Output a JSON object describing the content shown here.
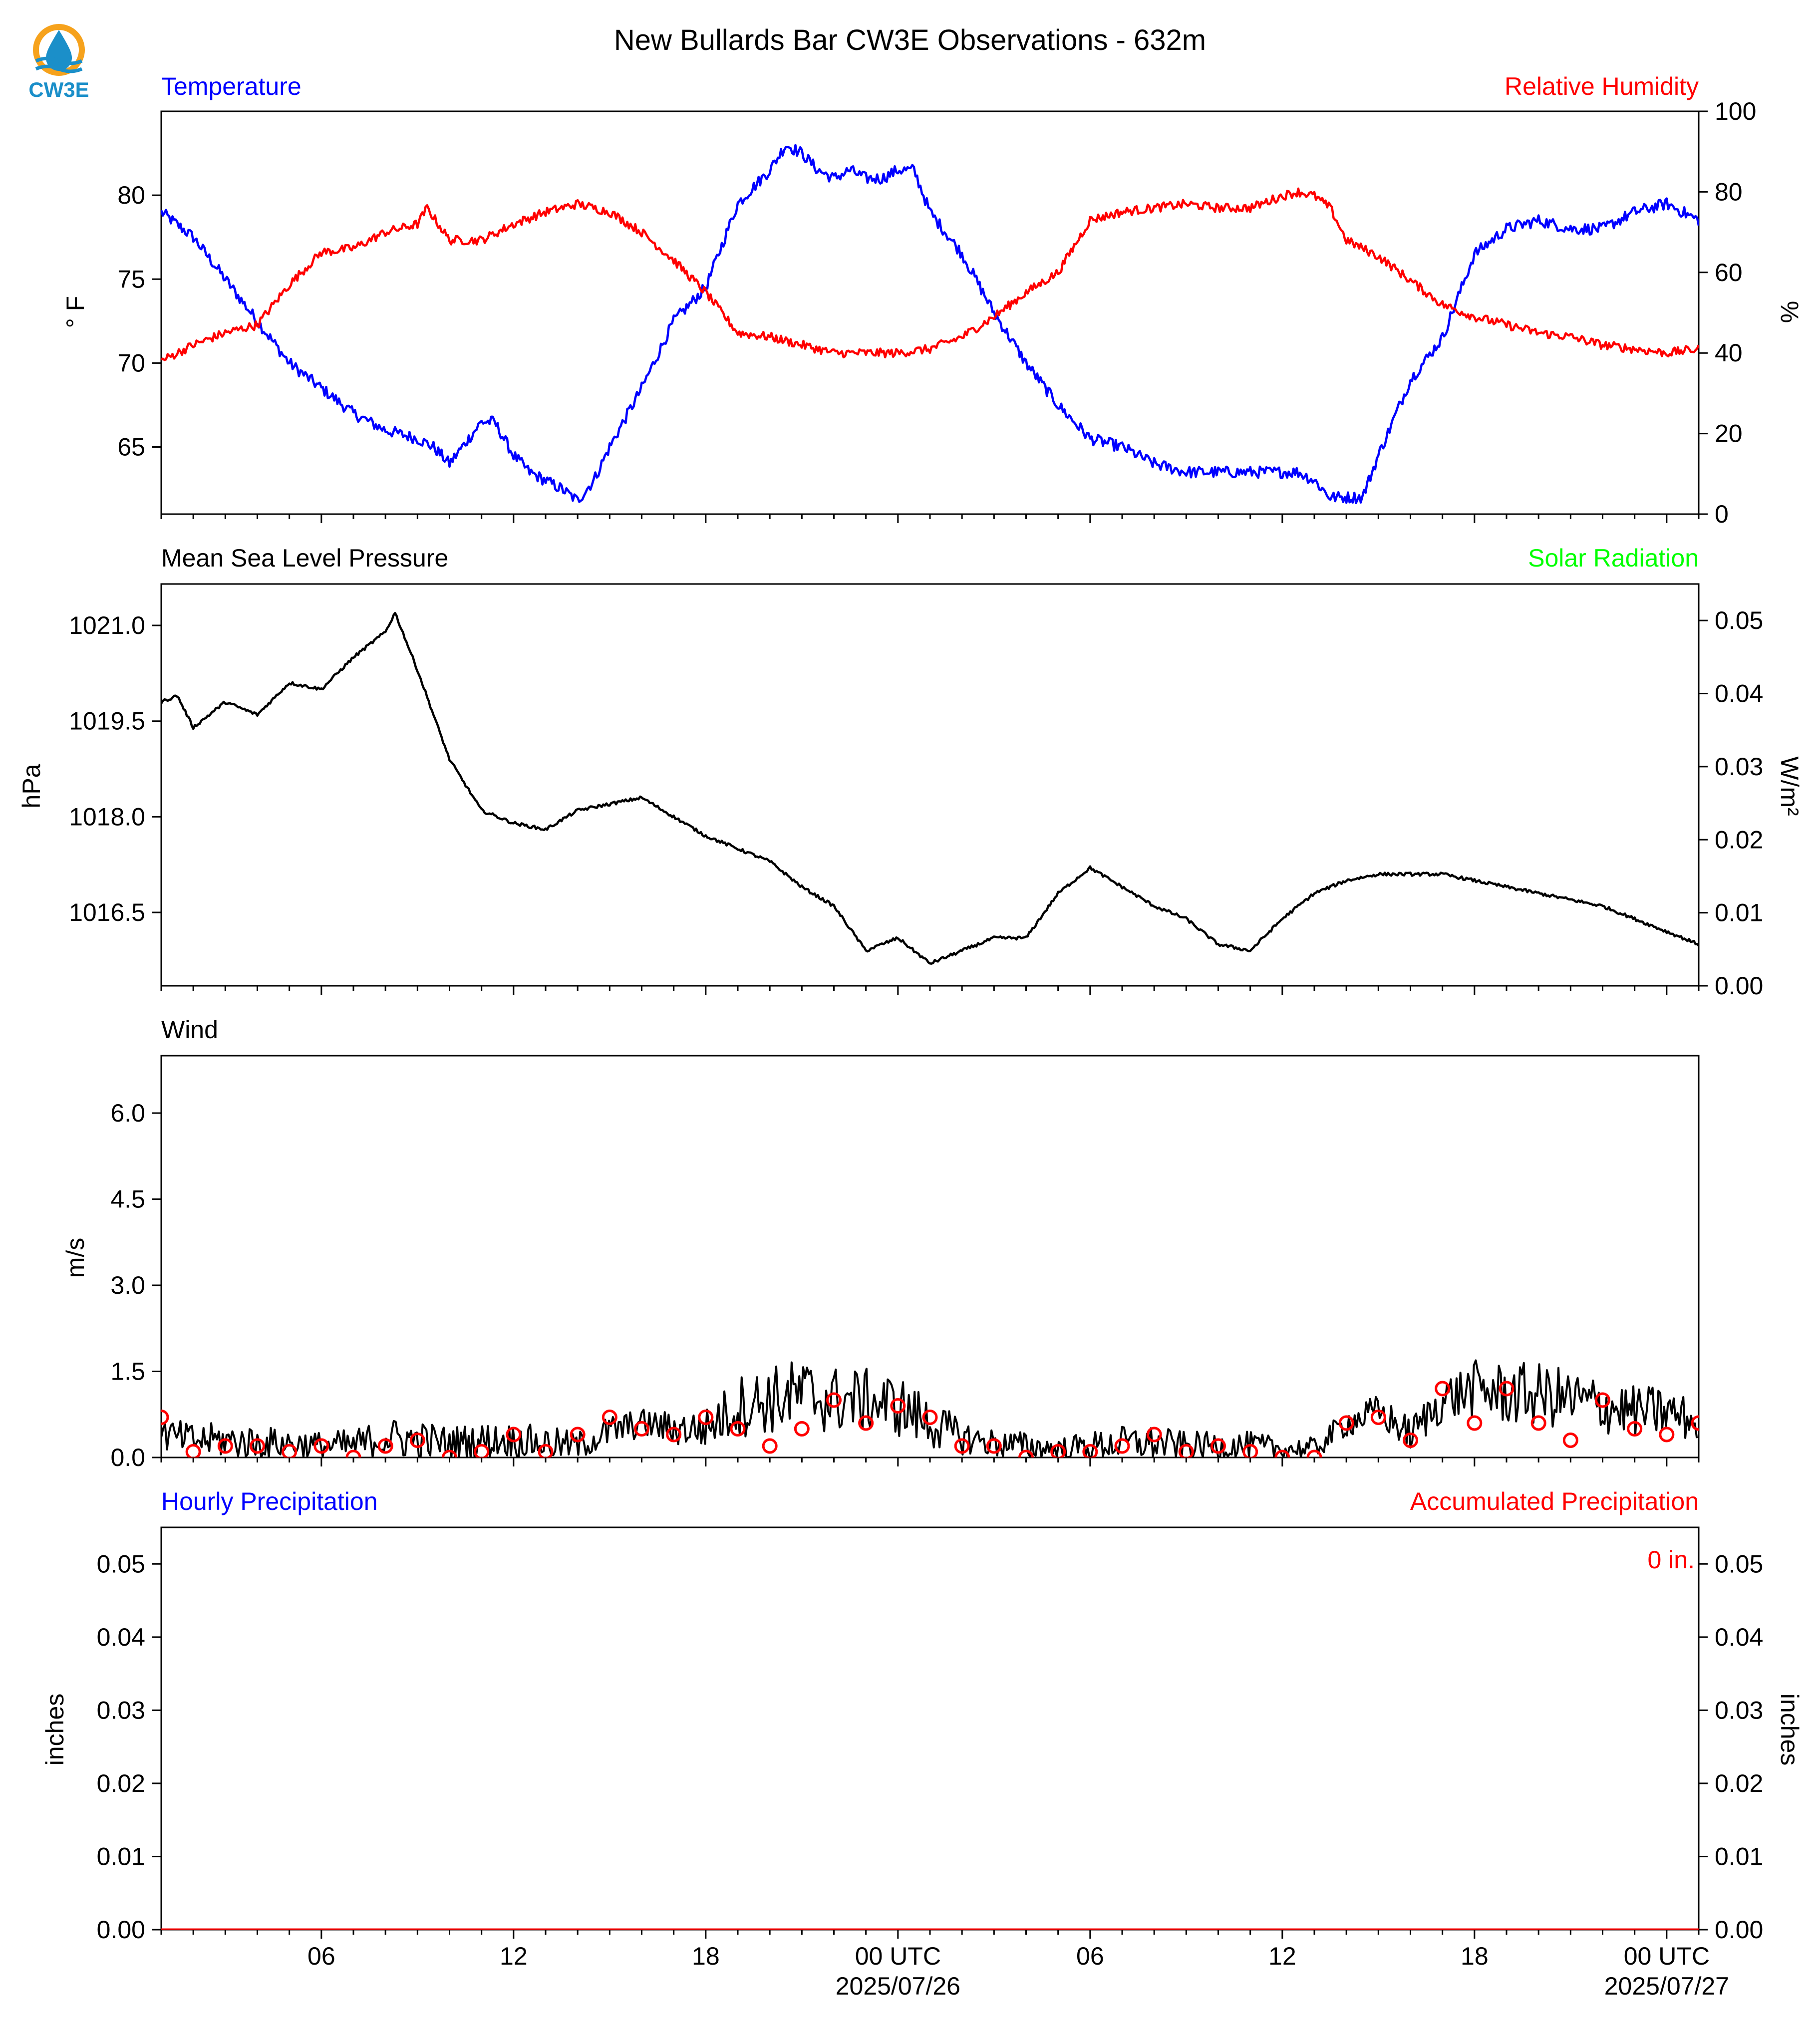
{
  "title": "New Bullards Bar CW3E Observations - 632m",
  "logo": {
    "text": "CW3E",
    "ring_color": "#f6a21c",
    "drop_color": "#1b8fc9",
    "text_color": "#1b8fc9"
  },
  "colors": {
    "blue": "#0000ff",
    "red": "#ff0000",
    "green": "#00ff00",
    "black": "#000000"
  },
  "x_axis": {
    "range_hours": [
      0,
      48
    ],
    "tick_labels": [
      "06",
      "12",
      "18",
      "00 UTC",
      "06",
      "12",
      "18",
      "00 UTC"
    ],
    "tick_hours": [
      5,
      11,
      17,
      23,
      29,
      35,
      41,
      47
    ],
    "date_labels": [
      "2025/07/26",
      "2025/07/27"
    ],
    "date_hours": [
      23,
      47
    ]
  },
  "panels": {
    "temp_rh": {
      "left_title": "Temperature",
      "right_title": "Relative Humidity",
      "left_unit": "° F",
      "right_unit": "%"
    },
    "pressure": {
      "left_title": "Mean Sea Level Pressure",
      "right_title": "Solar Radiation",
      "left_unit": "hPa",
      "right_unit": "W/m²"
    },
    "wind": {
      "left_title": "Wind",
      "left_unit": "m/s"
    },
    "precip": {
      "left_title": "Hourly Precipitation",
      "right_title": "Accumulated Precipitation",
      "left_unit": "inches",
      "right_unit": "inches",
      "total_label": "0 in."
    }
  },
  "chart_data": [
    {
      "type": "line",
      "name": "temperature-humidity",
      "x_unit": "hours",
      "xlim": [
        0,
        48
      ],
      "ylim_left": [
        61,
        85
      ],
      "yticks_left": [
        "65",
        "70",
        "75",
        "80"
      ],
      "ylim_right": [
        0,
        100
      ],
      "yticks_right": [
        "0",
        "20",
        "40",
        "60",
        "80",
        "100"
      ],
      "series": [
        {
          "axis": "left",
          "color": "#0000ff",
          "x": [
            0,
            1,
            2,
            3,
            4,
            5,
            6,
            7,
            8,
            8.5,
            9,
            10,
            10.4,
            11,
            11.5,
            12,
            12.5,
            13,
            13.5,
            14,
            15,
            16,
            17,
            17.5,
            18,
            19,
            19.5,
            20,
            20.5,
            21,
            21.5,
            22,
            22.5,
            23,
            23.5,
            24,
            25,
            26,
            27,
            28,
            29,
            30,
            31,
            32,
            33,
            34,
            35,
            35.5,
            36,
            36.5,
            37,
            37.5,
            38,
            39,
            40,
            40.5,
            41,
            42,
            43,
            44,
            45,
            46,
            47,
            48
          ],
          "y": [
            79,
            77.5,
            75,
            72.5,
            70,
            68.5,
            67,
            66,
            65.5,
            65,
            64,
            66.5,
            66.5,
            64.5,
            63.5,
            63,
            62.5,
            61.8,
            63,
            65,
            68.5,
            72.5,
            74.5,
            77,
            79.5,
            81.5,
            83,
            82.5,
            81.5,
            81,
            81.5,
            81,
            81,
            81.5,
            81.5,
            79,
            76.5,
            73,
            70,
            67.5,
            65.5,
            65,
            64,
            63.5,
            63.5,
            63.5,
            63.5,
            63.5,
            63,
            62,
            62,
            62,
            64.5,
            69,
            71.5,
            74,
            76.5,
            78,
            78.5,
            78,
            78,
            79,
            79.5,
            78.5
          ]
        },
        {
          "axis": "right",
          "color": "#ff0000",
          "x": [
            0,
            1,
            2,
            3,
            4,
            5,
            6,
            7,
            8,
            8.3,
            9,
            10,
            11,
            12,
            13,
            14,
            15,
            16,
            17,
            18,
            19,
            20,
            21,
            22,
            23,
            24,
            25,
            26,
            27,
            28,
            29,
            30,
            31,
            32,
            33,
            34,
            35,
            35.5,
            36,
            36.5,
            37,
            38,
            39,
            40,
            41,
            42,
            43,
            44,
            45,
            46,
            47,
            48
          ],
          "y": [
            38,
            42,
            45,
            47,
            57,
            65,
            66,
            70,
            72,
            76,
            68,
            68,
            72,
            75,
            77,
            75,
            70,
            63,
            55,
            45,
            44,
            42,
            40,
            40,
            40,
            41,
            44,
            49,
            55,
            60,
            73,
            75,
            76,
            77,
            76,
            76,
            79,
            80,
            79,
            76,
            68,
            64,
            58,
            52,
            49,
            47,
            45,
            44,
            42,
            41,
            40,
            41
          ]
        }
      ]
    },
    {
      "type": "line",
      "name": "mean-sea-level-pressure",
      "x_unit": "hours",
      "xlim": [
        0,
        48
      ],
      "ylim": [
        1015.35,
        1021.65
      ],
      "yticks": [
        "1016.5",
        "1018.0",
        "1019.5",
        "1021.0"
      ],
      "ylim_right": [
        0,
        0.055
      ],
      "yticks_right": [
        "0.00",
        "0.01",
        "0.02",
        "0.03",
        "0.04",
        "0.05"
      ],
      "series": [
        {
          "color": "#000000",
          "x": [
            0,
            0.5,
            1,
            2,
            3,
            4,
            5,
            6,
            6.5,
            7,
            7.3,
            8,
            9,
            9.5,
            10,
            11,
            12,
            13,
            14,
            15,
            16,
            17,
            18,
            19,
            20,
            21,
            22,
            23,
            24,
            25,
            26,
            27,
            28,
            29,
            30,
            31,
            32,
            33,
            34,
            35,
            36,
            37,
            38,
            39,
            40,
            41,
            42,
            43,
            44,
            45,
            46,
            47,
            48
          ],
          "y": [
            1019.8,
            1019.9,
            1019.4,
            1019.8,
            1019.6,
            1020.1,
            1020.0,
            1020.5,
            1020.7,
            1020.9,
            1021.2,
            1020.3,
            1018.9,
            1018.5,
            1018.1,
            1017.9,
            1017.8,
            1018.1,
            1018.2,
            1018.3,
            1018.0,
            1017.7,
            1017.5,
            1017.3,
            1016.9,
            1016.6,
            1015.9,
            1016.1,
            1015.7,
            1015.9,
            1016.1,
            1016.1,
            1016.8,
            1017.2,
            1016.9,
            1016.6,
            1016.4,
            1016.0,
            1015.9,
            1016.4,
            1016.8,
            1017.0,
            1017.1,
            1017.1,
            1017.1,
            1017.0,
            1016.9,
            1016.8,
            1016.7,
            1016.6,
            1016.4,
            1016.2,
            1016.0
          ]
        }
      ]
    },
    {
      "type": "line",
      "name": "wind",
      "x_unit": "hours",
      "xlim": [
        0,
        48
      ],
      "ylim": [
        0,
        7.0
      ],
      "yticks": [
        "0.0",
        "1.5",
        "3.0",
        "4.5",
        "6.0"
      ],
      "series": [
        {
          "color": "#000000",
          "x": [
            0,
            1,
            2,
            3,
            4,
            5,
            6,
            7,
            8,
            9,
            10,
            11,
            12,
            13,
            14,
            15,
            16,
            17,
            17.5,
            18,
            19,
            20,
            21,
            22,
            23,
            24,
            25,
            26,
            27,
            28,
            29,
            30,
            31,
            32,
            33,
            34,
            35,
            36,
            37,
            38,
            39,
            40,
            41,
            42,
            43,
            44,
            45,
            46,
            47,
            48
          ],
          "y": [
            0.4,
            0.3,
            0.3,
            0.25,
            0.25,
            0.2,
            0.2,
            0.35,
            0.3,
            0.25,
            0.3,
            0.3,
            0.25,
            0.2,
            0.45,
            0.6,
            0.5,
            0.5,
            0.7,
            0.9,
            1.0,
            1.1,
            1.0,
            1.0,
            0.9,
            0.6,
            0.35,
            0.25,
            0.2,
            0.15,
            0.2,
            0.25,
            0.25,
            0.2,
            0.2,
            0.2,
            0.15,
            0.15,
            0.6,
            0.8,
            0.4,
            1.0,
            1.2,
            1.1,
            1.1,
            1.0,
            0.9,
            0.8,
            0.8,
            0.6
          ],
          "spread": [
            0.3,
            0.3,
            0.3,
            0.3,
            0.25,
            0.25,
            0.3,
            0.35,
            0.35,
            0.3,
            0.3,
            0.3,
            0.3,
            0.25,
            0.3,
            0.25,
            0.3,
            0.35,
            0.45,
            0.55,
            0.6,
            0.65,
            0.6,
            0.55,
            0.55,
            0.45,
            0.3,
            0.25,
            0.25,
            0.2,
            0.25,
            0.3,
            0.3,
            0.25,
            0.25,
            0.25,
            0.2,
            0.2,
            0.25,
            0.3,
            0.3,
            0.4,
            0.5,
            0.55,
            0.55,
            0.55,
            0.5,
            0.45,
            0.45,
            0.35
          ]
        }
      ],
      "markers": {
        "color": "#ff0000",
        "x": [
          0,
          1,
          2,
          3,
          4,
          5,
          6,
          7,
          8,
          9,
          10,
          11,
          12,
          13,
          14,
          15,
          16,
          17,
          18,
          19,
          20,
          21,
          22,
          23,
          24,
          25,
          26,
          27,
          28,
          29,
          30,
          31,
          32,
          33,
          34,
          35,
          36,
          37,
          38,
          39,
          40,
          41,
          42,
          43,
          44,
          45,
          46,
          47,
          48
        ],
        "y": [
          0.7,
          0.1,
          0.2,
          0.2,
          0.1,
          0.2,
          0.0,
          0.2,
          0.3,
          0.0,
          0.1,
          0.4,
          0.1,
          0.4,
          0.7,
          0.5,
          0.4,
          0.7,
          0.5,
          0.2,
          0.5,
          1.0,
          0.6,
          0.9,
          0.7,
          0.2,
          0.2,
          0.0,
          0.1,
          0.1,
          0.2,
          0.4,
          0.1,
          0.2,
          0.1,
          0.0,
          0.0,
          0.6,
          0.7,
          0.3,
          1.2,
          0.6,
          1.2,
          0.6,
          0.3,
          1.0,
          0.5,
          0.4,
          0.6
        ]
      }
    },
    {
      "type": "line",
      "name": "precipitation",
      "x_unit": "hours",
      "xlim": [
        0,
        48
      ],
      "ylim": [
        0,
        0.055
      ],
      "yticks": [
        "0.00",
        "0.01",
        "0.02",
        "0.03",
        "0.04",
        "0.05"
      ],
      "ylim_right": [
        0,
        0.055
      ],
      "yticks_right": [
        "0.00",
        "0.01",
        "0.02",
        "0.03",
        "0.04",
        "0.05"
      ],
      "series": [
        {
          "color": "#ff0000",
          "x": [
            0,
            48
          ],
          "y": [
            0,
            0
          ]
        }
      ]
    }
  ]
}
